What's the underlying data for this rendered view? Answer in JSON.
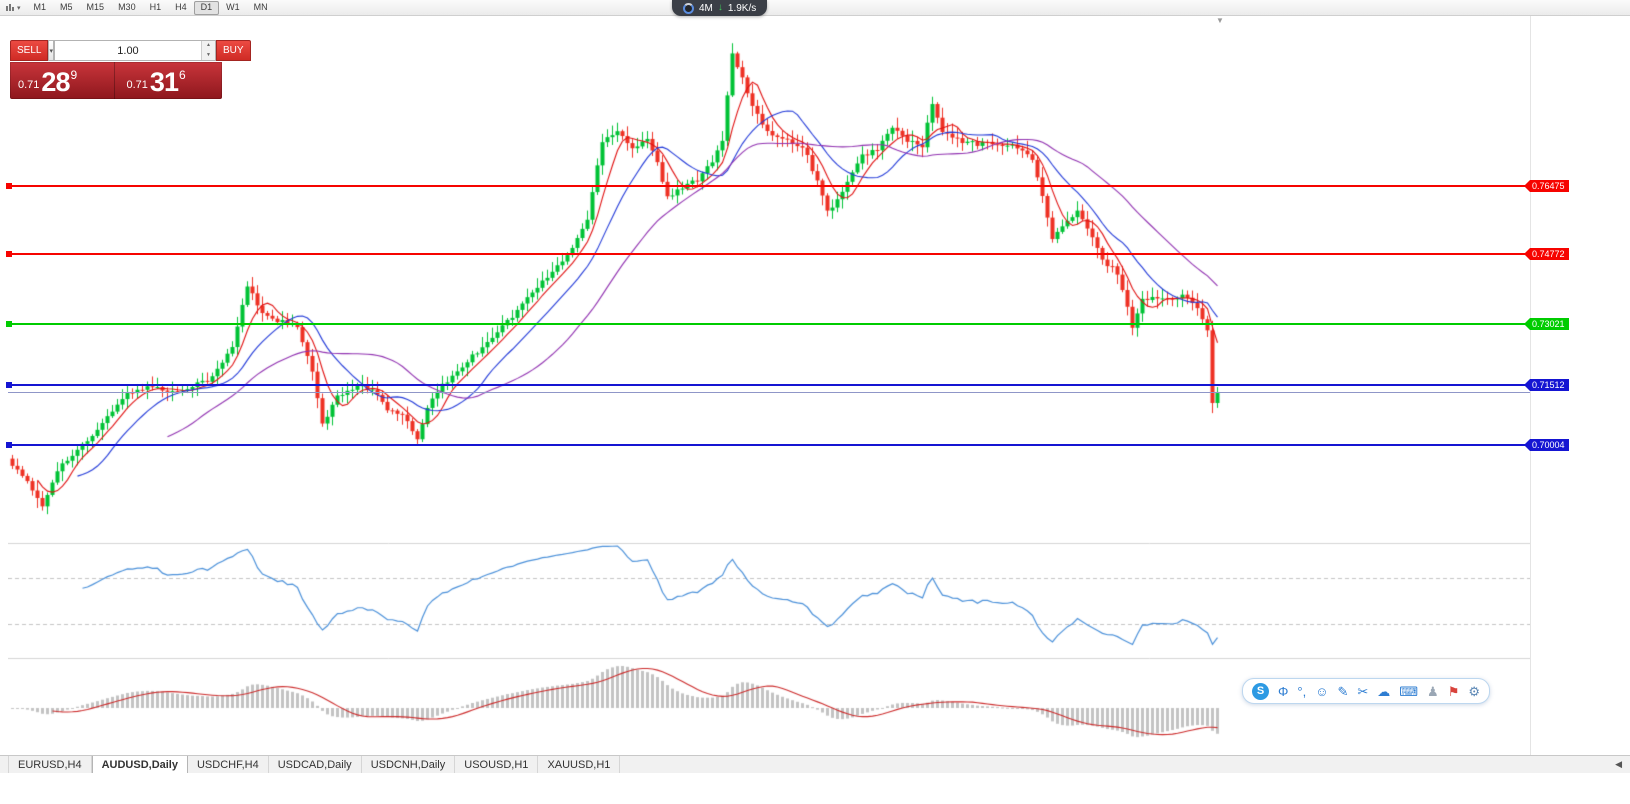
{
  "toolbar": {
    "timeframes": [
      "M1",
      "M5",
      "M15",
      "M30",
      "H1",
      "H4",
      "D1",
      "W1",
      "MN"
    ],
    "selected_timeframe": "D1"
  },
  "overlay": {
    "gauge_label": "4M",
    "down_arrow": "↓",
    "download_speed": "1.9K/s"
  },
  "trade_panel": {
    "sell_label": "SELL",
    "buy_label": "BUY",
    "volume": "1.00",
    "sell": {
      "prefix": "0.71",
      "big": "28",
      "sup": "9"
    },
    "buy": {
      "prefix": "0.71",
      "big": "31",
      "sup": "6"
    }
  },
  "hlines": [
    {
      "label": "0.76475",
      "value": 0.76475,
      "color": "#f60400",
      "thin": false
    },
    {
      "label": "0.74772",
      "value": 0.74772,
      "color": "#f60400",
      "thin": false
    },
    {
      "label": "0.73021",
      "value": 0.73021,
      "color": "#00cc00",
      "thin": false
    },
    {
      "label": "0.71512",
      "value": 0.71512,
      "color": "#1515d2",
      "thin": false
    },
    {
      "label": "0.70004",
      "value": 0.70004,
      "color": "#1515d2",
      "thin": false
    },
    {
      "label": "",
      "value": 0.71316,
      "color": "#8f96c8",
      "thin": true
    }
  ],
  "chart_data": {
    "type": "candlestick",
    "symbol": "AUDUSD",
    "timeframe": "Daily",
    "bar_count": 242,
    "ylim": [
      0.6755,
      0.80725
    ],
    "noise": 0.0012,
    "up_color": "#00c235",
    "down_color": "#ee3124",
    "close_waypoints": [
      [
        0,
        0.695
      ],
      [
        3,
        0.6905
      ],
      [
        6,
        0.6848
      ],
      [
        9,
        0.694
      ],
      [
        13,
        0.6985
      ],
      [
        17,
        0.7035
      ],
      [
        22,
        0.712
      ],
      [
        27,
        0.7148
      ],
      [
        32,
        0.7132
      ],
      [
        36,
        0.715
      ],
      [
        40,
        0.7168
      ],
      [
        44,
        0.7245
      ],
      [
        47,
        0.7398
      ],
      [
        50,
        0.733
      ],
      [
        53,
        0.7312
      ],
      [
        57,
        0.7295
      ],
      [
        60,
        0.718
      ],
      [
        62,
        0.7052
      ],
      [
        65,
        0.7118
      ],
      [
        69,
        0.7152
      ],
      [
        72,
        0.7138
      ],
      [
        75,
        0.7088
      ],
      [
        78,
        0.7072
      ],
      [
        81,
        0.7018
      ],
      [
        84,
        0.7122
      ],
      [
        88,
        0.7172
      ],
      [
        92,
        0.7222
      ],
      [
        96,
        0.7272
      ],
      [
        100,
        0.7322
      ],
      [
        104,
        0.7382
      ],
      [
        108,
        0.7432
      ],
      [
        112,
        0.7492
      ],
      [
        115,
        0.7565
      ],
      [
        118,
        0.7762
      ],
      [
        121,
        0.7788
      ],
      [
        124,
        0.7742
      ],
      [
        127,
        0.7768
      ],
      [
        129,
        0.7705
      ],
      [
        131,
        0.7618
      ],
      [
        134,
        0.7642
      ],
      [
        137,
        0.7665
      ],
      [
        140,
        0.7712
      ],
      [
        142,
        0.7765
      ],
      [
        144,
        0.7975
      ],
      [
        146,
        0.7918
      ],
      [
        148,
        0.7842
      ],
      [
        150,
        0.7802
      ],
      [
        152,
        0.7778
      ],
      [
        155,
        0.7762
      ],
      [
        158,
        0.7748
      ],
      [
        161,
        0.7662
      ],
      [
        163,
        0.7582
      ],
      [
        166,
        0.7632
      ],
      [
        170,
        0.7722
      ],
      [
        173,
        0.7742
      ],
      [
        176,
        0.7792
      ],
      [
        179,
        0.7762
      ],
      [
        182,
        0.7748
      ],
      [
        184,
        0.7852
      ],
      [
        186,
        0.7782
      ],
      [
        189,
        0.7762
      ],
      [
        193,
        0.7752
      ],
      [
        197,
        0.7756
      ],
      [
        201,
        0.7742
      ],
      [
        204,
        0.7718
      ],
      [
        206,
        0.7622
      ],
      [
        208,
        0.7512
      ],
      [
        210,
        0.7548
      ],
      [
        213,
        0.7582
      ],
      [
        215,
        0.7542
      ],
      [
        218,
        0.7462
      ],
      [
        221,
        0.7432
      ],
      [
        224,
        0.7298
      ],
      [
        226,
        0.7362
      ],
      [
        228,
        0.7372
      ],
      [
        231,
        0.7362
      ],
      [
        234,
        0.7372
      ],
      [
        237,
        0.7348
      ],
      [
        239,
        0.7292
      ],
      [
        240,
        0.7105
      ],
      [
        241,
        0.7131
      ]
    ],
    "moving_averages": [
      {
        "period": 6,
        "color": "#e01010"
      },
      {
        "period": 14,
        "color": "#2038d8"
      },
      {
        "period": 32,
        "color": "#9030b0"
      }
    ],
    "indicators": [
      {
        "name": "RSI",
        "period": 14,
        "color": "#4a90d9",
        "levels": [
          70,
          30
        ]
      },
      {
        "name": "MACD",
        "fast": 12,
        "slow": 26,
        "signal": 9,
        "histogram_color": "#c3c3c3",
        "signal_color": "#cc2a2a"
      }
    ]
  },
  "tabs": {
    "items": [
      "EURUSD,H4",
      "AUDUSD,Daily",
      "USDCHF,H4",
      "USDCAD,Daily",
      "USDCNH,Daily",
      "USOUSD,H1",
      "XAUUSD,H1"
    ],
    "active": "AUDUSD,Daily"
  },
  "ime": {
    "icons": [
      {
        "name": "sogou-logo-icon",
        "glyph": "S",
        "style": "logo"
      },
      {
        "name": "lang-toggle-icon",
        "glyph": "Φ",
        "style": ""
      },
      {
        "name": "punctuation-icon",
        "glyph": "°,",
        "style": ""
      },
      {
        "name": "emoji-icon",
        "glyph": "☺",
        "style": ""
      },
      {
        "name": "handwriting-icon",
        "glyph": "✎",
        "style": ""
      },
      {
        "name": "screenshot-icon",
        "glyph": "✂",
        "style": ""
      },
      {
        "name": "cloud-icon",
        "glyph": "☁",
        "style": ""
      },
      {
        "name": "keyboard-icon",
        "glyph": "⌨",
        "style": ""
      },
      {
        "name": "account-icon",
        "glyph": "♟",
        "style": "muted"
      },
      {
        "name": "skin-icon",
        "glyph": "⚑",
        "style": "accent"
      },
      {
        "name": "settings-icon",
        "glyph": "⚙",
        "style": "gear"
      }
    ]
  }
}
